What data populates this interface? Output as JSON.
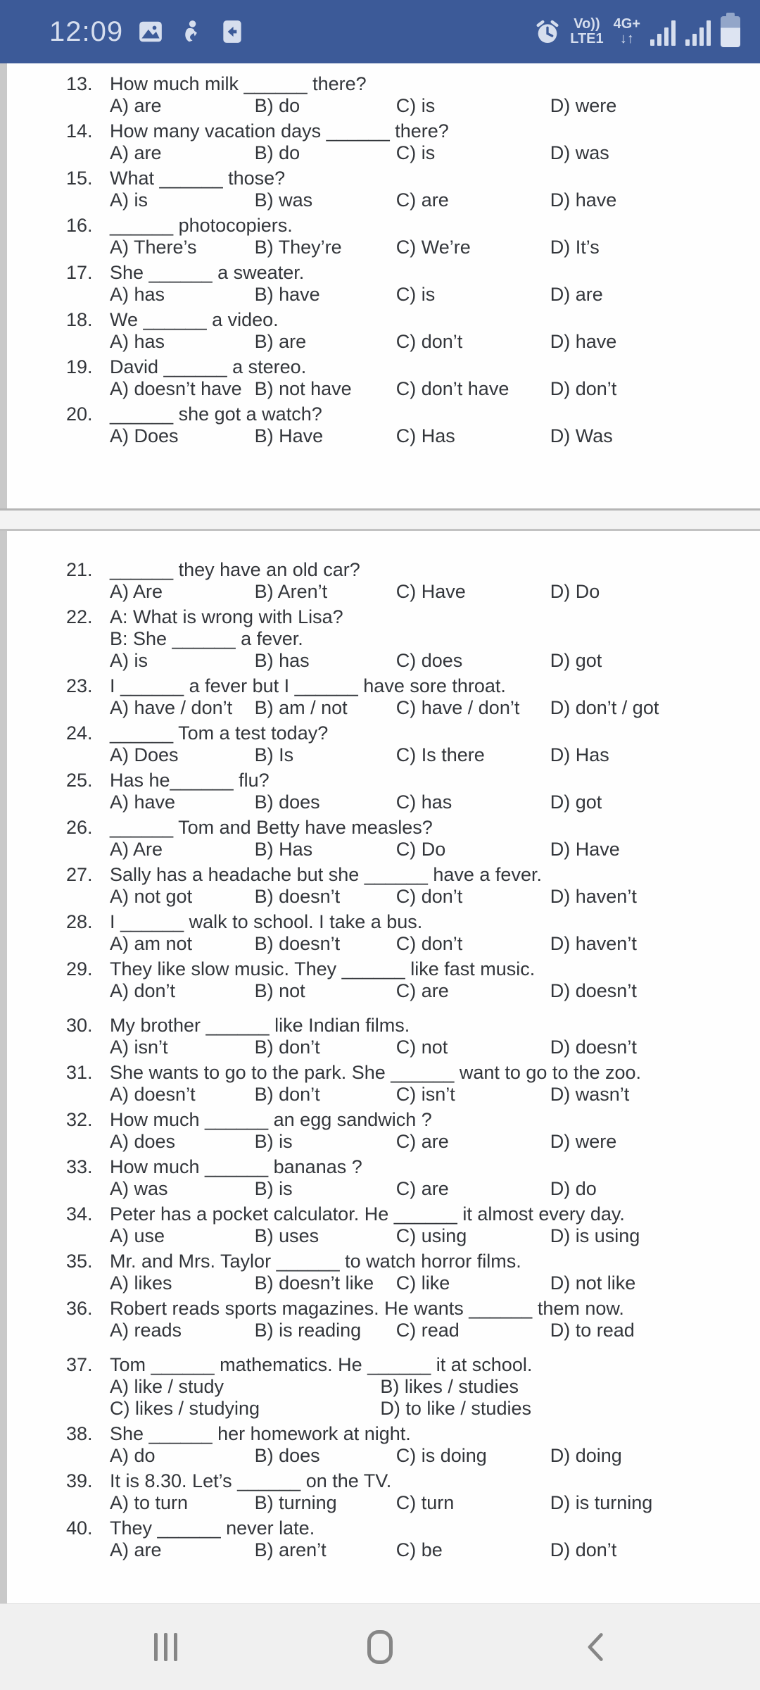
{
  "status_bar": {
    "time": "12:09",
    "left_icons": [
      "gallery-icon",
      "person-icon",
      "call-arrow-icon"
    ],
    "volte_label": "Vo))",
    "network_label": "LTE1",
    "speed_label": "4G+",
    "arrows_label": "↓↑",
    "bg_color": "#3c5a98",
    "fg_color": "#d6deee"
  },
  "document": {
    "pages": [
      {
        "questions": [
          {
            "num": "13",
            "text": "How much milk ______ there?",
            "options": [
              "A) are",
              "B) do",
              "C) is",
              "D) were"
            ]
          },
          {
            "num": "14",
            "text": "How many vacation days ______ there?",
            "options": [
              "A) are",
              "B) do",
              "C) is",
              "D) was"
            ]
          },
          {
            "num": "15",
            "text": "What ______ those?",
            "options": [
              "A) is",
              "B) was",
              "C) are",
              "D) have"
            ]
          },
          {
            "num": "16",
            "text": "______ photocopiers.",
            "options": [
              "A) There’s",
              "B) They’re",
              "C) We’re",
              "D) It’s"
            ]
          },
          {
            "num": "17",
            "text": "She ______ a sweater.",
            "options": [
              "A) has",
              "B) have",
              "C) is",
              "D) are"
            ]
          },
          {
            "num": "18",
            "text": "We ______ a video.",
            "options": [
              "A) has",
              "B) are",
              "C) don’t",
              "D) have"
            ]
          },
          {
            "num": "19",
            "text": "David ______ a stereo.",
            "options": [
              "A) doesn’t have",
              "B) not have",
              "C) don’t have",
              "D) don’t"
            ]
          },
          {
            "num": "20",
            "text": "______ she got a watch?",
            "options": [
              "A) Does",
              "B) Have",
              "C) Has",
              "D) Was"
            ]
          }
        ]
      },
      {
        "questions": [
          {
            "num": "21",
            "text": "______ they have an old car?",
            "options": [
              "A) Are",
              "B) Aren’t",
              "C) Have",
              "D) Do"
            ]
          },
          {
            "num": "22",
            "lines": [
              "A: What is wrong with Lisa?",
              "B: She ______ a fever."
            ],
            "options": [
              "A) is",
              "B) has",
              "C) does",
              "D) got"
            ]
          },
          {
            "num": "23",
            "text": "I ______ a fever but I ______ have sore throat.",
            "options": [
              "A) have / don’t",
              "B) am / not",
              "C) have / don’t",
              "D) don’t / got"
            ]
          },
          {
            "num": "24",
            "text": "______ Tom a test today?",
            "options": [
              "A) Does",
              "B) Is",
              "C) Is there",
              "D) Has"
            ]
          },
          {
            "num": "25",
            "text": "Has he______ flu?",
            "options": [
              "A) have",
              "B) does",
              "C) has",
              "D) got"
            ]
          },
          {
            "num": "26",
            "text": "______ Tom and Betty have measles?",
            "options": [
              "A) Are",
              "B) Has",
              "C) Do",
              "D) Have"
            ]
          },
          {
            "num": "27",
            "text": "Sally has a headache but she ______ have a fever.",
            "options": [
              "A) not got",
              "B) doesn’t",
              "C) don’t",
              "D) haven’t"
            ]
          },
          {
            "num": "28",
            "text": "I ______ walk to school. I take a bus.",
            "options": [
              "A) am not",
              "B) doesn’t",
              "C) don’t",
              "D) haven’t"
            ]
          },
          {
            "num": "29",
            "text": "They like slow music. They ______ like fast music.",
            "options": [
              "A) don’t",
              "B) not",
              "C) are",
              "D) doesn’t"
            ]
          },
          {
            "num": "30",
            "gap_before": true,
            "text": "My brother ______ like Indian films.",
            "options": [
              "A) isn’t",
              "B) don’t",
              "C) not",
              "D) doesn’t"
            ]
          },
          {
            "num": "31",
            "text": "She wants to go to the park. She ______ want to go to the zoo.",
            "options": [
              "A) doesn’t",
              "B) don’t",
              "C) isn’t",
              "D) wasn’t"
            ]
          },
          {
            "num": "32",
            "text": "How much ______ an egg sandwich ?",
            "options": [
              "A) does",
              "B) is",
              "C) are",
              "D) were"
            ]
          },
          {
            "num": "33",
            "text": "How much ______ bananas ?",
            "options": [
              "A) was",
              "B) is",
              "C) are",
              "D) do"
            ]
          },
          {
            "num": "34",
            "text": "Peter has a pocket calculator. He ______ it almost every day.",
            "options": [
              "A) use",
              "B) uses",
              "C) using",
              "D) is using"
            ]
          },
          {
            "num": "35",
            "text": "Mr. and Mrs. Taylor ______ to watch horror films.",
            "options": [
              "A) likes",
              "B) doesn’t like",
              "C) like",
              "D) not like"
            ]
          },
          {
            "num": "36",
            "text": "Robert reads sports magazines. He wants ______ them now.",
            "options": [
              "A) reads",
              "B) is reading",
              "C) read",
              "D) to read"
            ]
          },
          {
            "num": "37",
            "gap_before": true,
            "two_col": true,
            "text": "Tom ______ mathematics. He ______ it at school.",
            "options": [
              "A) like / study",
              "B) likes / studies",
              "C) likes / studying",
              "D) to like / studies"
            ]
          },
          {
            "num": "38",
            "text": "She ______ her homework at night.",
            "options": [
              "A) do",
              "B) does",
              "C) is doing",
              "D) doing"
            ]
          },
          {
            "num": "39",
            "text": "It is 8.30. Let’s ______ on the TV.",
            "options": [
              "A) to turn",
              "B) turning",
              "C) turn",
              "D) is turning"
            ]
          },
          {
            "num": "40",
            "text": "They ______ never late.",
            "options": [
              "A) are",
              "B) aren’t",
              "C) be",
              "D) don’t"
            ]
          }
        ]
      }
    ]
  },
  "nav_bar": {
    "icons": [
      "recents-icon",
      "home-icon",
      "back-icon"
    ],
    "icon_color": "#868686",
    "bg_color": "#f0f0f0"
  }
}
